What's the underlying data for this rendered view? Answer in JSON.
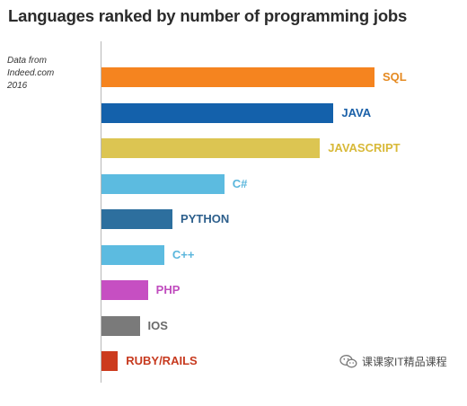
{
  "chart_data": {
    "type": "bar",
    "orientation": "horizontal",
    "title": "Languages ranked by number of programming jobs",
    "source_note": [
      "Data from",
      "Indeed.com",
      "2016"
    ],
    "categories": [
      "SQL",
      "JAVA",
      "JAVASCRIPT",
      "C#",
      "PYTHON",
      "C++",
      "PHP",
      "IOS",
      "RUBY/RAILS"
    ],
    "values": [
      100,
      85,
      80,
      45,
      26,
      23,
      17,
      14,
      6
    ],
    "colors": [
      "#f5841f",
      "#1461ab",
      "#dcc552",
      "#5cbbe0",
      "#2d6f9e",
      "#5cbbe0",
      "#c64fc2",
      "#7a7a7a",
      "#cc3b1e"
    ],
    "label_colors": [
      "#e58a21",
      "#1a60a8",
      "#d8b938",
      "#5ab6dc",
      "#2d5f8c",
      "#5ab6dc",
      "#c04cbe",
      "#6a6a6a",
      "#c73a1f"
    ],
    "xlim": [
      0,
      100
    ],
    "grid": false,
    "legend": "none"
  },
  "watermark": {
    "icon": "wechat-icon",
    "text": "课课家IT精品课程"
  }
}
